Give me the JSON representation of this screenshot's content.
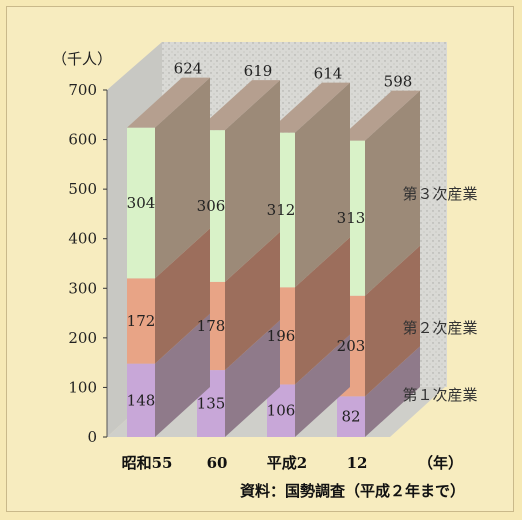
{
  "chart_data": {
    "type": "bar",
    "stacked": true,
    "style": "3d",
    "ylabel": "（千人）",
    "xlabel": "（年）",
    "ylim": [
      0,
      700
    ],
    "yticks": [
      0,
      100,
      200,
      300,
      400,
      500,
      600,
      700
    ],
    "categories": [
      "昭和55",
      "60",
      "平成2",
      "12"
    ],
    "totals": [
      624,
      619,
      614,
      598
    ],
    "series": [
      {
        "name": "第１次産業",
        "values": [
          148,
          135,
          106,
          82
        ],
        "color": "#c8a7d8"
      },
      {
        "name": "第２次産業",
        "values": [
          172,
          178,
          196,
          203
        ],
        "color": "#e8a486"
      },
      {
        "name": "第３次産業",
        "values": [
          304,
          306,
          312,
          313
        ],
        "color": "#d9f2c8"
      }
    ],
    "source": "資料：国勢調査（平成２年まで）"
  }
}
